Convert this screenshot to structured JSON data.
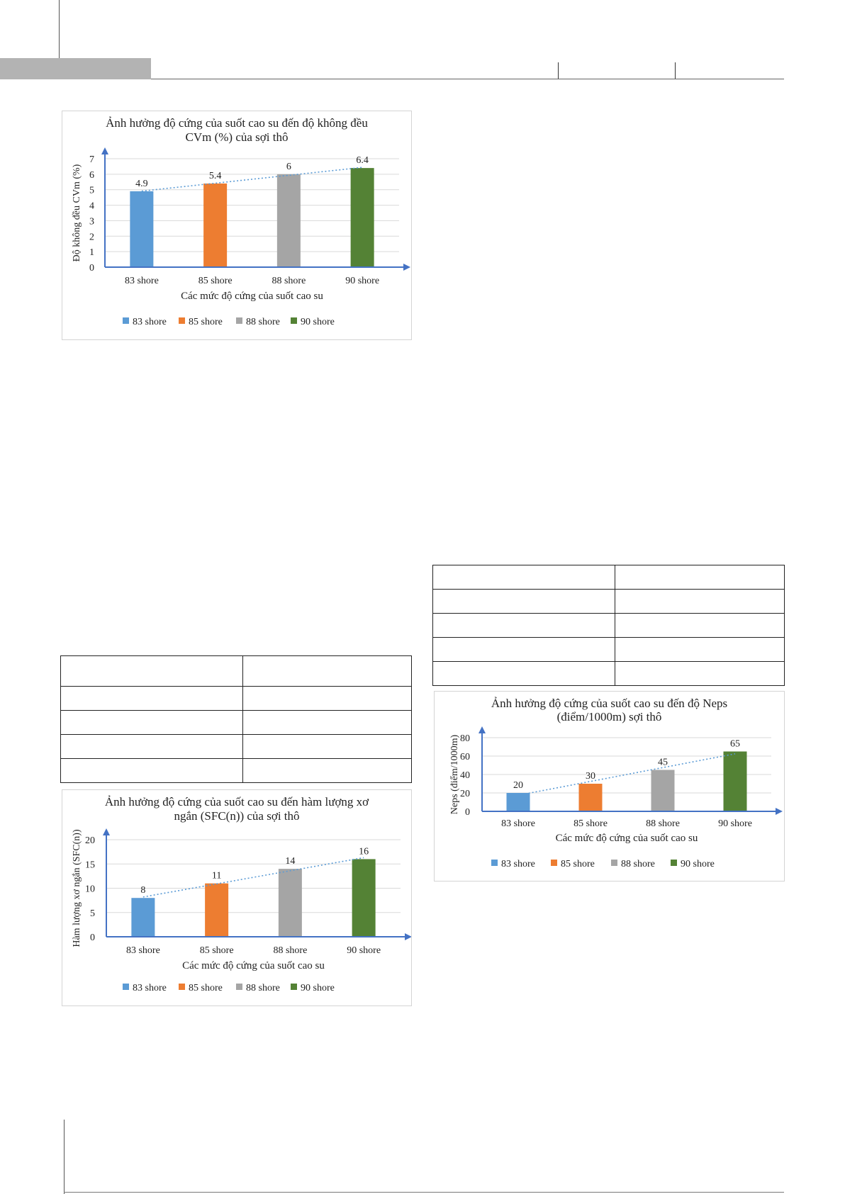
{
  "chart_data": [
    {
      "type": "bar",
      "title": "Ảnh hưởng độ cứng của suốt cao su đến độ không đều CVm (%) của sợi thô",
      "title_lines": [
        "Ảnh hưởng độ cứng của suốt cao su đến độ không đều",
        "CVm (%) của sợi thô"
      ],
      "categories": [
        "83 shore",
        "85 shore",
        "88 shore",
        "90 shore"
      ],
      "values": [
        4.9,
        5.4,
        6,
        6.4
      ],
      "data_labels": [
        "4.9",
        "5.4",
        "6",
        "6.4"
      ],
      "series_names": [
        "83 shore",
        "85 shore",
        "88 shore",
        "90 shore"
      ],
      "colors": [
        "#5b9bd5",
        "#ed7d31",
        "#a5a5a5",
        "#548235"
      ],
      "xlabel": "Các mức độ cứng của suốt cao su",
      "ylabel": "Độ không đều CVm (%)",
      "ylim": [
        0,
        7
      ],
      "yticks": [
        "0",
        "1",
        "2",
        "3",
        "4",
        "5",
        "6",
        "7"
      ],
      "trendline": "linear, dotted",
      "grid": true,
      "legend": "bottom"
    },
    {
      "type": "bar",
      "title": "Ảnh hưởng độ cứng của suốt cao su đến hàm lượng xơ ngắn (SFC(n)) của sợi thô",
      "title_lines": [
        "Ảnh hưởng độ cứng của suốt cao su đến hàm lượng xơ",
        "ngắn (SFC(n)) của sợi thô"
      ],
      "categories": [
        "83 shore",
        "85 shore",
        "88 shore",
        "90 shore"
      ],
      "values": [
        8,
        11,
        14,
        16
      ],
      "data_labels": [
        "8",
        "11",
        "14",
        "16"
      ],
      "series_names": [
        "83 shore",
        "85 shore",
        "88 shore",
        "90 shore"
      ],
      "colors": [
        "#5b9bd5",
        "#ed7d31",
        "#a5a5a5",
        "#548235"
      ],
      "xlabel": "Các mức độ cứng của suốt cao su",
      "ylabel": "Hàm lượng xơ ngắn (SFC(n))",
      "ylim": [
        0,
        20
      ],
      "yticks": [
        "0",
        "5",
        "10",
        "15",
        "20"
      ],
      "trendline": "linear, dotted",
      "grid": true,
      "legend": "bottom"
    },
    {
      "type": "bar",
      "title": "Ảnh hưởng độ cứng của suốt cao su đến độ Neps (điểm/1000m) sợi thô",
      "title_lines": [
        "Ảnh hưởng độ cứng của suốt cao su đến độ Neps",
        "(điểm/1000m) sợi thô"
      ],
      "categories": [
        "83 shore",
        "85 shore",
        "88 shore",
        "90 shore"
      ],
      "values": [
        20,
        30,
        45,
        65
      ],
      "data_labels": [
        "20",
        "30",
        "45",
        "65"
      ],
      "series_names": [
        "83 shore",
        "85 shore",
        "88 shore",
        "90 shore"
      ],
      "colors": [
        "#5b9bd5",
        "#ed7d31",
        "#a5a5a5",
        "#548235"
      ],
      "xlabel": "Các mức độ cứng của suốt cao su",
      "ylabel": "Neps (điểm/1000m)",
      "ylim": [
        0,
        80
      ],
      "yticks": [
        "0",
        "20",
        "40",
        "60",
        "80"
      ],
      "trendline": "linear, dotted",
      "grid": true,
      "legend": "bottom"
    }
  ],
  "axis_color": "#4472c4",
  "trend_color": "#5b9bd5"
}
